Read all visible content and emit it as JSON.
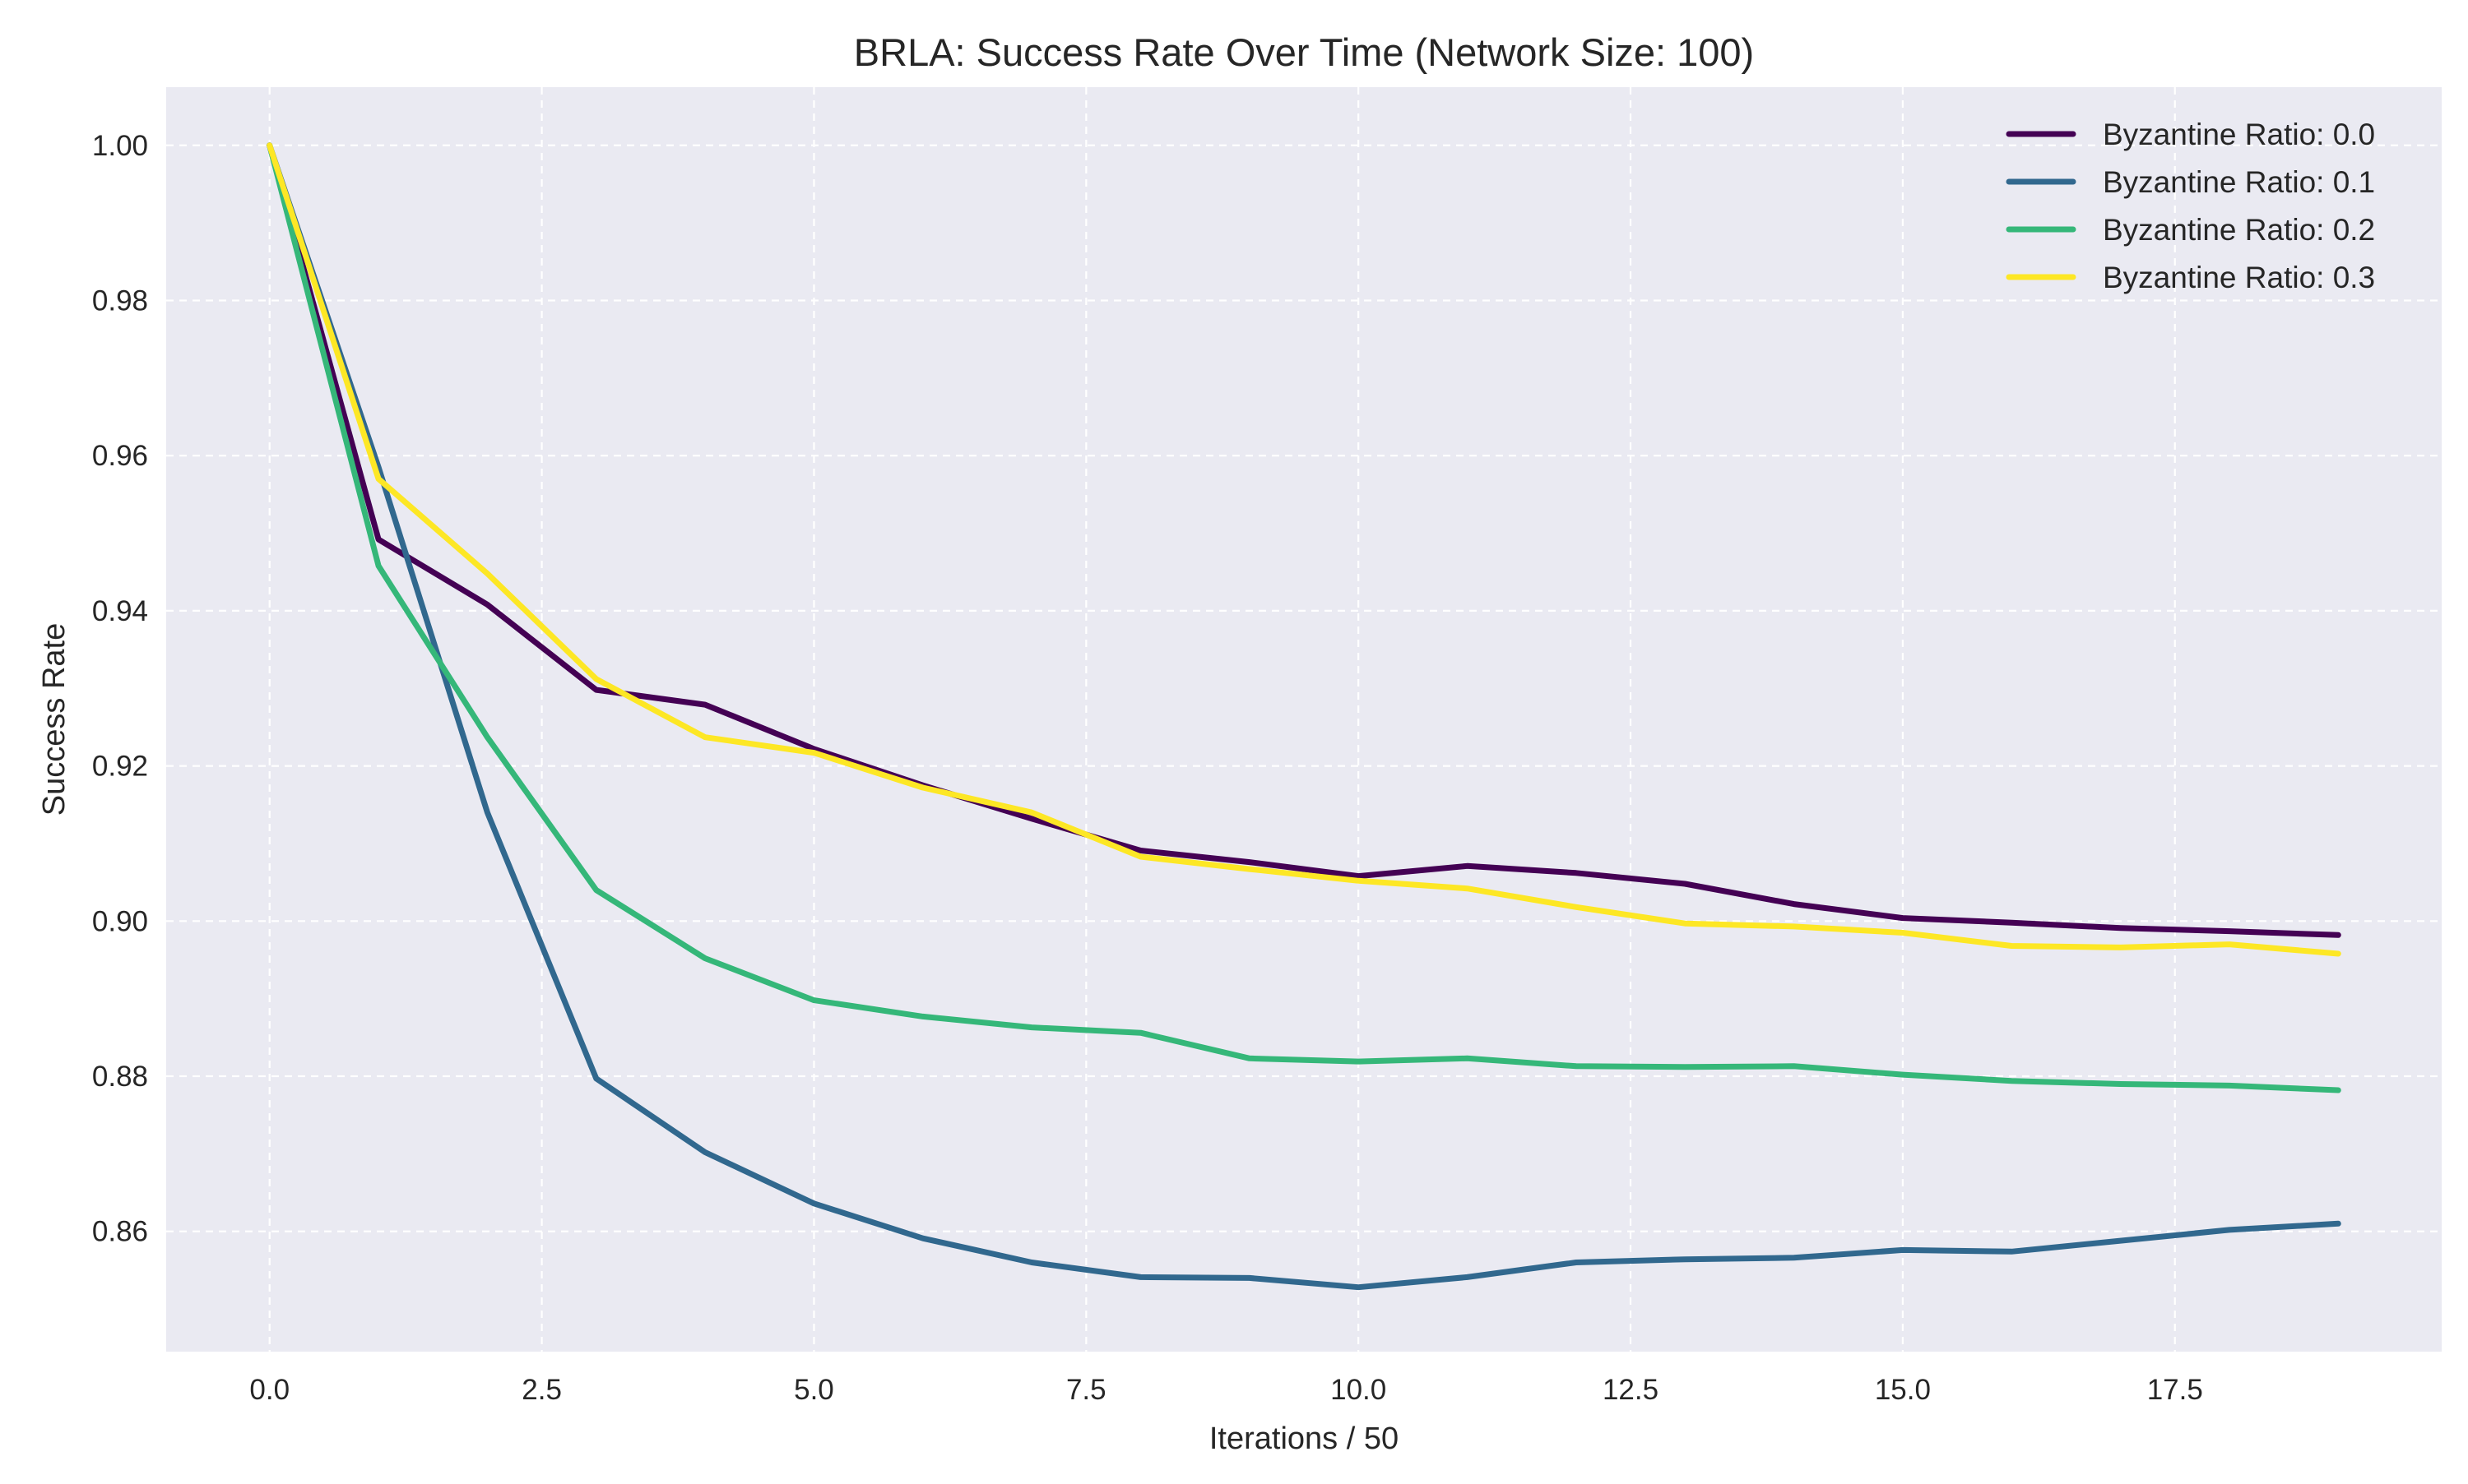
{
  "chart_data": {
    "type": "line",
    "title": "BRLA: Success Rate Over Time (Network Size: 100)",
    "xlabel": "Iterations / 50",
    "ylabel": "Success Rate",
    "xlim": [
      -0.95,
      19.95
    ],
    "ylim": [
      0.8445,
      1.0075
    ],
    "x_ticks": [
      0,
      2.5,
      5,
      7.5,
      10,
      12.5,
      15,
      17.5
    ],
    "x_tick_labels": [
      "0.0",
      "2.5",
      "5.0",
      "7.5",
      "10.0",
      "12.5",
      "15.0",
      "17.5"
    ],
    "y_ticks": [
      0.86,
      0.88,
      0.9,
      0.92,
      0.94,
      0.96,
      0.98,
      1.0
    ],
    "y_tick_labels": [
      "0.86",
      "0.88",
      "0.90",
      "0.92",
      "0.94",
      "0.96",
      "0.98",
      "1.00"
    ],
    "grid": true,
    "legend_position": "top-right",
    "background_color": "#eaeaf2",
    "grid_color": "#ffffff",
    "x": [
      0,
      1,
      2,
      3,
      4,
      5,
      6,
      7,
      8,
      9,
      10,
      11,
      12,
      13,
      14,
      15,
      16,
      17,
      18,
      19
    ],
    "series": [
      {
        "name": "Byzantine Ratio: 0.0",
        "color": "#440154",
        "values": [
          1.0,
          0.9492,
          0.9408,
          0.9298,
          0.9279,
          0.9222,
          0.9175,
          0.9132,
          0.9091,
          0.9076,
          0.9058,
          0.9071,
          0.9062,
          0.9048,
          0.9022,
          0.9004,
          0.8998,
          0.8991,
          0.8987,
          0.8982
        ]
      },
      {
        "name": "Byzantine Ratio: 0.1",
        "color": "#31688e",
        "values": [
          1.0,
          0.9585,
          0.914,
          0.8797,
          0.8702,
          0.8636,
          0.8591,
          0.856,
          0.8541,
          0.854,
          0.8528,
          0.8541,
          0.856,
          0.8564,
          0.8566,
          0.8576,
          0.8574,
          0.8588,
          0.8602,
          0.861
        ]
      },
      {
        "name": "Byzantine Ratio: 0.2",
        "color": "#35b779",
        "values": [
          1.0,
          0.9458,
          0.9237,
          0.904,
          0.8952,
          0.8898,
          0.8877,
          0.8863,
          0.8856,
          0.8823,
          0.8819,
          0.8823,
          0.8813,
          0.8812,
          0.8813,
          0.8802,
          0.8794,
          0.879,
          0.8788,
          0.8782
        ]
      },
      {
        "name": "Byzantine Ratio: 0.3",
        "color": "#fde725",
        "values": [
          1.0,
          0.957,
          0.9448,
          0.9312,
          0.9237,
          0.9217,
          0.9172,
          0.914,
          0.9083,
          0.9067,
          0.9052,
          0.9042,
          0.9018,
          0.8997,
          0.8993,
          0.8985,
          0.8968,
          0.8966,
          0.897,
          0.8958
        ]
      }
    ]
  }
}
